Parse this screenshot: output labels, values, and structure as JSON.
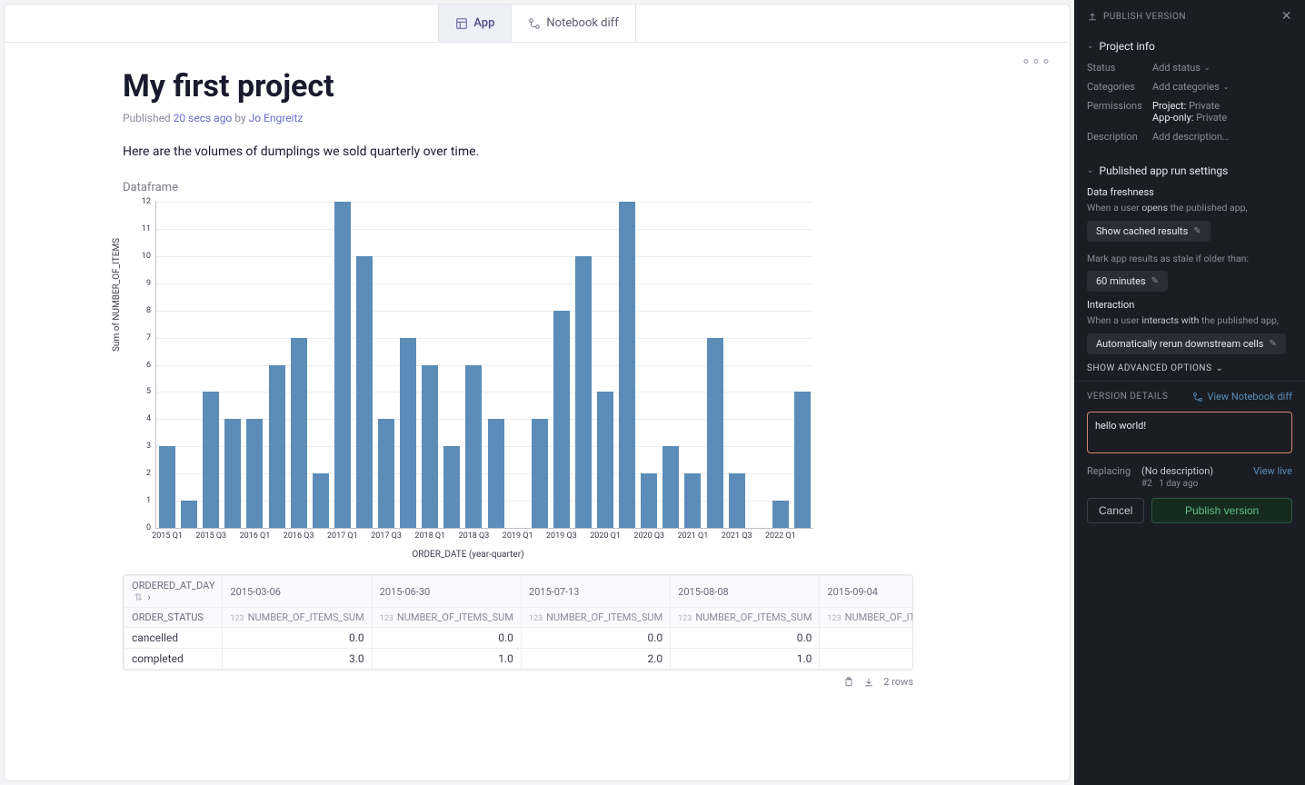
{
  "tabs": {
    "app": "App",
    "notebook_diff": "Notebook diff"
  },
  "project": {
    "title": "My first project",
    "published_prefix": "Published",
    "published_time": "20 secs ago",
    "by": "by",
    "author": "Jo Engreitz",
    "body": "Here are the volumes of dumplings we sold quarterly over time."
  },
  "chart": {
    "title": "Dataframe",
    "type": "bar",
    "y_label": "Sum of NUMBER_OF_ITEMS",
    "x_label": "ORDER_DATE (year-quarter)",
    "ylim": [
      0,
      12
    ],
    "ytick_step": 1,
    "bar_color": "#5b8db8",
    "grid_color": "#eeeef2",
    "axis_color": "#c0c0c8",
    "background_color": "#ffffff",
    "categories": [
      "2015 Q1",
      "2015 Q2",
      "2015 Q3",
      "2015 Q4",
      "2016 Q1",
      "2016 Q2",
      "2016 Q3",
      "2016 Q4",
      "2017 Q1",
      "2017 Q2",
      "2017 Q3",
      "2017 Q4",
      "2018 Q1",
      "2018 Q2",
      "2018 Q3",
      "2018 Q4",
      "2019 Q1",
      "2019 Q2",
      "2019 Q3",
      "2019 Q4",
      "2020 Q1",
      "2020 Q2",
      "2020 Q3",
      "2020 Q4",
      "2021 Q1",
      "2021 Q2",
      "2021 Q3",
      "2021 Q4",
      "2022 Q1",
      "2022 Q2"
    ],
    "values": [
      3,
      1,
      5,
      4,
      4,
      6,
      7,
      2,
      12,
      10,
      4,
      7,
      6,
      3,
      6,
      4,
      0,
      4,
      8,
      10,
      5,
      12,
      2,
      3,
      2,
      7,
      2,
      0,
      1,
      5
    ],
    "x_ticks_shown": [
      "2015 Q1",
      "2015 Q3",
      "2016 Q1",
      "2016 Q3",
      "2017 Q1",
      "2017 Q3",
      "2018 Q1",
      "2018 Q3",
      "2019 Q1",
      "2019 Q3",
      "2020 Q1",
      "2020 Q3",
      "2021 Q1",
      "2021 Q3",
      "2022 Q1"
    ],
    "bar_width_ratio": 0.75
  },
  "table": {
    "row_header_1": "ORDERED_AT_DAY",
    "row_header_2": "ORDER_STATUS",
    "col_label": "NUMBER_OF_ITEMS_SUM",
    "type_prefix": "123",
    "date_cols": [
      "2015-03-06",
      "2015-06-30",
      "2015-07-13",
      "2015-08-08",
      "2015-09-04"
    ],
    "rows": [
      {
        "status": "cancelled",
        "vals": [
          "0.0",
          "0.0",
          "0.0",
          "0.0",
          ""
        ]
      },
      {
        "status": "completed",
        "vals": [
          "3.0",
          "1.0",
          "2.0",
          "1.0",
          ""
        ]
      }
    ],
    "footer_rows": "2 rows"
  },
  "sidebar": {
    "header": "PUBLISH VERSION",
    "project_info": {
      "title": "Project info",
      "status_k": "Status",
      "status_v": "Add status",
      "categories_k": "Categories",
      "categories_v": "Add categories",
      "permissions_k": "Permissions",
      "perm_project_k": "Project:",
      "perm_project_v": "Private",
      "perm_apponly_k": "App-only:",
      "perm_apponly_v": "Private",
      "description_k": "Description",
      "description_v": "Add description…"
    },
    "run_settings": {
      "title": "Published app run settings",
      "freshness_label": "Data freshness",
      "freshness_desc_1": "When a user",
      "freshness_desc_em": "opens",
      "freshness_desc_2": "the published app,",
      "freshness_chip": "Show cached results",
      "stale_label": "Mark app results as stale if older than:",
      "stale_chip": "60 minutes",
      "interaction_label": "Interaction",
      "interaction_desc_1": "When a user",
      "interaction_desc_em": "interacts with",
      "interaction_desc_2": "the published app,",
      "interaction_chip": "Automatically rerun downstream cells",
      "advanced": "SHOW ADVANCED OPTIONS"
    },
    "version": {
      "header": "VERSION DETAILS",
      "diff_link": "View Notebook diff",
      "description_value": "hello world!",
      "replacing_k": "Replacing",
      "replacing_v": "(No description)",
      "replacing_meta_num": "#2",
      "replacing_meta_time": "1 day ago",
      "view_live": "View live",
      "cancel": "Cancel",
      "publish": "Publish version"
    }
  }
}
